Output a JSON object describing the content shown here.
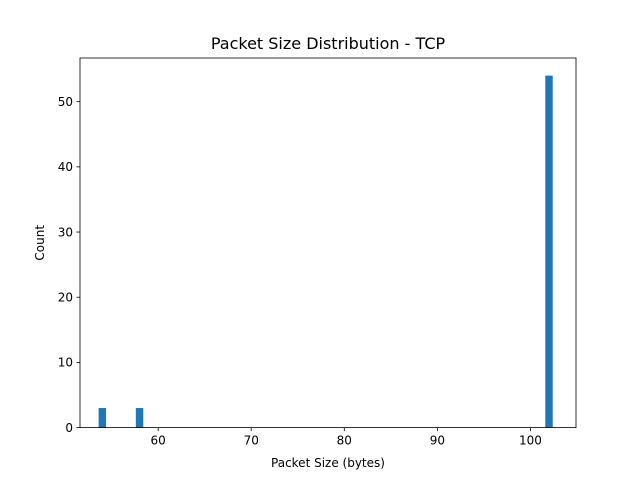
{
  "chart_data": {
    "type": "bar",
    "title": "Packet Size Distribution - TCP",
    "xlabel": "Packet Size (bytes)",
    "ylabel": "Count",
    "xlim": [
      51.6,
      104.9
    ],
    "ylim": [
      0,
      56.7
    ],
    "xticks": [
      60,
      70,
      80,
      90,
      100
    ],
    "yticks": [
      0,
      10,
      20,
      30,
      40,
      50
    ],
    "bin_width": 0.8,
    "bars": [
      {
        "x": 54.0,
        "count": 3
      },
      {
        "x": 58.0,
        "count": 3
      },
      {
        "x": 102.0,
        "count": 54
      }
    ],
    "bar_color": "#1f77b4",
    "grid": false
  }
}
